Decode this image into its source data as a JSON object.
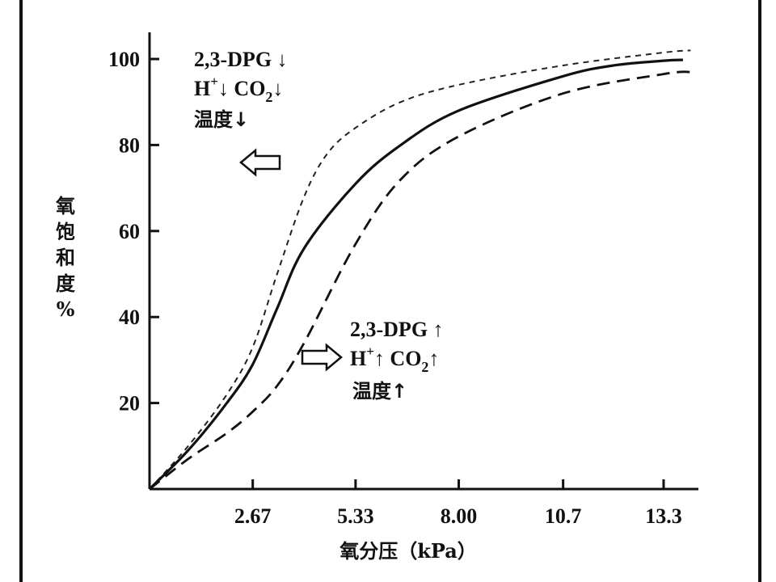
{
  "chart_data": {
    "type": "line",
    "xlabel": "氧分压（kPa）",
    "ylabel": "氧饱和度%",
    "ylabel_chars": [
      "氧",
      "饱",
      "和",
      "度",
      "%"
    ],
    "x_ticks": [
      "2.67",
      "5.33",
      "8.00",
      "10.7",
      "13.3"
    ],
    "y_ticks": [
      "20",
      "40",
      "60",
      "80",
      "100"
    ],
    "xlim": [
      0,
      14.2
    ],
    "ylim": [
      0,
      105
    ],
    "grid": false,
    "series": [
      {
        "style": "dashed-thin",
        "x": [
          0,
          1.0,
          2.0,
          2.67,
          3.3,
          4.0,
          4.6,
          5.33,
          6.5,
          8.0,
          10.7,
          13.3,
          14.0
        ],
        "y": [
          0,
          10,
          22,
          33,
          50,
          68,
          78,
          84,
          90,
          94,
          98.5,
          101.5,
          102
        ]
      },
      {
        "style": "solid",
        "x": [
          0,
          1.0,
          2.0,
          2.67,
          3.3,
          4.0,
          5.33,
          6.5,
          8.0,
          10.7,
          12.0,
          13.3,
          13.8
        ],
        "y": [
          0,
          9,
          20,
          29,
          42,
          56,
          71,
          80,
          88,
          96,
          98.5,
          99.6,
          99.8
        ]
      },
      {
        "style": "dashed",
        "x": [
          0,
          1.0,
          2.0,
          2.67,
          3.3,
          4.0,
          5.33,
          6.5,
          8.0,
          10.7,
          13.3,
          14.0
        ],
        "y": [
          0,
          7,
          13,
          18,
          24,
          34,
          57,
          72,
          82,
          92,
          96.5,
          97
        ]
      }
    ],
    "annotations": {
      "left_shift": {
        "line1": "2,3-DPG ↓",
        "line2_h": "H",
        "line2_plus": "+",
        "line2_rest": "↓ CO",
        "line2_sub": "2",
        "line2_arrow": "↓",
        "line3": "温度↓"
      },
      "right_shift": {
        "line1": "2,3-DPG ↑",
        "line2_h": "H",
        "line2_plus": "+",
        "line2_rest": "↑ CO",
        "line2_sub": "2",
        "line2_arrow": "↑",
        "line3": "温度↑"
      }
    }
  }
}
